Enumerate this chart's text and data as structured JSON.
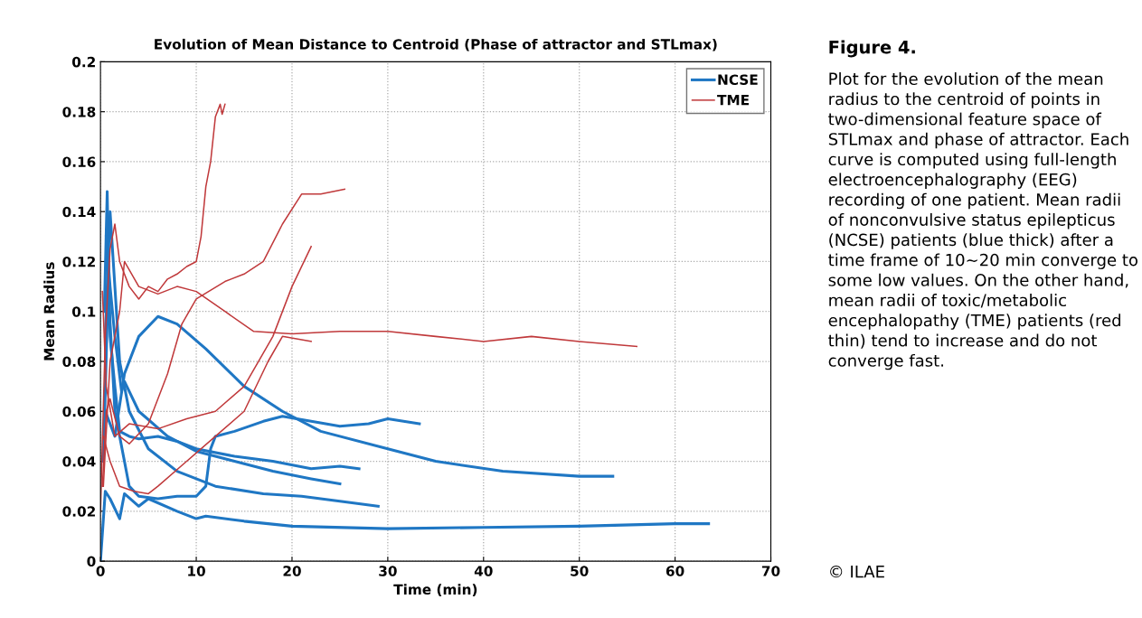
{
  "chart_data": {
    "type": "line",
    "title": "Evolution of Mean Distance to Centroid (Phase of attractor and STLmax)",
    "xlabel": "Time (min)",
    "ylabel": "Mean Radius",
    "xlim": [
      0,
      70
    ],
    "xticks": [
      0,
      10,
      20,
      30,
      40,
      50,
      60,
      70
    ],
    "ylim": [
      0,
      0.2
    ],
    "yticks": [
      0,
      0.02,
      0.04,
      0.06,
      0.08,
      0.1,
      0.12,
      0.14,
      0.16,
      0.18,
      0.2
    ],
    "grid": true,
    "legend": "top right",
    "line_style": "solid",
    "marker": "none",
    "series": [
      {
        "name": "NCSE",
        "color": "#1f77c4",
        "x": [
          0,
          0.5,
          1,
          2,
          2.5,
          4,
          5,
          8,
          10,
          11,
          15,
          20,
          30,
          40,
          50,
          60,
          63.5
        ],
        "values": [
          0,
          0.028,
          0.025,
          0.017,
          0.027,
          0.022,
          0.025,
          0.02,
          0.017,
          0.018,
          0.016,
          0.014,
          0.013,
          0.0135,
          0.014,
          0.015,
          0.015
        ]
      },
      {
        "color": "#1f77c4",
        "x": [
          0.5,
          1,
          1.5,
          2.5,
          4,
          6,
          8,
          11,
          15,
          19,
          23,
          30,
          35,
          42,
          50,
          53.5
        ],
        "values": [
          0.06,
          0.055,
          0.05,
          0.075,
          0.09,
          0.098,
          0.095,
          0.085,
          0.07,
          0.06,
          0.052,
          0.045,
          0.04,
          0.036,
          0.034,
          0.034
        ]
      },
      {
        "color": "#1f77c4",
        "x": [
          0.3,
          0.8,
          1.5,
          3,
          4,
          6,
          8,
          10,
          11,
          11.5,
          12,
          14,
          17,
          19,
          22,
          25,
          28,
          30,
          33.3
        ],
        "values": [
          0.04,
          0.11,
          0.06,
          0.03,
          0.026,
          0.025,
          0.026,
          0.026,
          0.03,
          0.045,
          0.05,
          0.052,
          0.056,
          0.058,
          0.056,
          0.054,
          0.055,
          0.057,
          0.055
        ]
      },
      {
        "color": "#1f77c4",
        "x": [
          0.4,
          0.7,
          1,
          1.5,
          2,
          3,
          4,
          6,
          8,
          10,
          14,
          18,
          22,
          25,
          27
        ],
        "values": [
          0.1,
          0.148,
          0.09,
          0.07,
          0.052,
          0.05,
          0.049,
          0.05,
          0.048,
          0.045,
          0.042,
          0.04,
          0.037,
          0.038,
          0.037
        ]
      },
      {
        "color": "#1f77c4",
        "x": [
          0.6,
          1,
          1.5,
          2.2,
          2.5,
          4,
          7,
          10,
          14,
          18,
          22,
          25
        ],
        "values": [
          0.13,
          0.11,
          0.09,
          0.068,
          0.072,
          0.06,
          0.05,
          0.044,
          0.04,
          0.036,
          0.033,
          0.031
        ]
      },
      {
        "color": "#1f77c4",
        "x": [
          0.5,
          1,
          2,
          3,
          5,
          8,
          12,
          17,
          21,
          25,
          29
        ],
        "values": [
          0.09,
          0.14,
          0.08,
          0.06,
          0.045,
          0.036,
          0.03,
          0.027,
          0.026,
          0.024,
          0.022
        ]
      },
      {
        "name": "TME",
        "color": "#c0393b",
        "x": [
          0,
          0.5,
          1,
          1.5,
          2,
          3,
          4,
          5,
          6,
          7,
          8,
          9,
          10,
          10.5,
          11,
          11.5,
          12,
          12.5,
          12.7,
          13
        ],
        "values": [
          0.02,
          0.09,
          0.125,
          0.135,
          0.12,
          0.11,
          0.105,
          0.11,
          0.108,
          0.113,
          0.115,
          0.118,
          0.12,
          0.13,
          0.15,
          0.16,
          0.178,
          0.183,
          0.179,
          0.183
        ]
      },
      {
        "color": "#c0393b",
        "x": [
          0.2,
          0.6,
          1,
          2,
          3,
          5,
          7,
          8.5,
          10,
          13,
          15,
          17,
          19,
          21,
          23,
          25.5
        ],
        "values": [
          0.03,
          0.06,
          0.065,
          0.05,
          0.047,
          0.055,
          0.075,
          0.095,
          0.105,
          0.112,
          0.115,
          0.12,
          0.135,
          0.147,
          0.147,
          0.149
        ]
      },
      {
        "color": "#c0393b",
        "x": [
          0.2,
          0.6,
          1.5,
          3,
          6,
          9,
          12,
          15,
          18,
          20,
          22
        ],
        "values": [
          0.108,
          0.07,
          0.05,
          0.055,
          0.053,
          0.057,
          0.06,
          0.07,
          0.09,
          0.11,
          0.126
        ]
      },
      {
        "color": "#c0393b",
        "x": [
          0.3,
          1,
          2,
          3.5,
          5,
          6,
          9,
          12,
          15,
          17.5,
          19,
          22
        ],
        "values": [
          0.05,
          0.04,
          0.03,
          0.028,
          0.027,
          0.03,
          0.04,
          0.05,
          0.06,
          0.08,
          0.09,
          0.088
        ]
      },
      {
        "color": "#c0393b",
        "x": [
          0.3,
          1,
          2,
          2.5,
          4,
          6,
          8,
          10,
          13,
          16,
          20,
          25,
          30,
          35,
          40,
          45,
          50,
          56
        ],
        "values": [
          0.03,
          0.08,
          0.1,
          0.12,
          0.11,
          0.107,
          0.11,
          0.108,
          0.1,
          0.092,
          0.091,
          0.092,
          0.092,
          0.09,
          0.088,
          0.09,
          0.088,
          0.086
        ]
      }
    ],
    "annotations": [
      "Figure 4.",
      "Plot for the evolution of the mean radius to the centroid of points in two-dimensional feature space of STLmax and phase of attractor. Each curve is computed using full-length electroencephalography (EEG) recording of one patient. Mean radii of nonconvulsive status epilepticus (NCSE) patients (blue thick) after a time frame of 10∼20 min converge to some low values. On the other hand, mean radii of toxic/metabolic encephalopathy (TME) patients (red thin) tend to increase and do not converge fast.",
      "© ILAE"
    ]
  }
}
